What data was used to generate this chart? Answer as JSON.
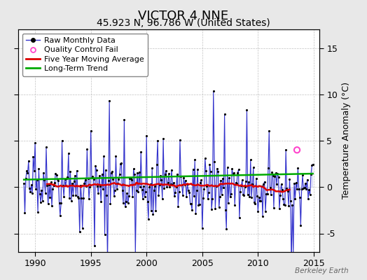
{
  "title": "VICTOR 4 NNE",
  "subtitle": "45.923 N, 96.786 W (United States)",
  "ylabel": "Temperature Anomaly (°C)",
  "watermark": "Berkeley Earth",
  "ylim": [
    -7,
    17
  ],
  "yticks": [
    -5,
    0,
    5,
    10,
    15
  ],
  "xlim": [
    1988.5,
    2015.5
  ],
  "xticks": [
    1990,
    1995,
    2000,
    2005,
    2010,
    2015
  ],
  "bg_color": "#e8e8e8",
  "plot_bg_color": "#ffffff",
  "raw_color": "#3333cc",
  "raw_fill_color": "#aaaaee",
  "raw_marker_color": "#000000",
  "moving_avg_color": "#dd0000",
  "trend_color": "#00aa00",
  "qc_fail_color": "#ff44cc",
  "qc_x": 2013.5,
  "qc_y": 4.0,
  "title_fontsize": 13,
  "subtitle_fontsize": 10,
  "tick_labelsize": 9,
  "ylabel_fontsize": 9,
  "legend_fontsize": 8,
  "watermark_fontsize": 7.5
}
